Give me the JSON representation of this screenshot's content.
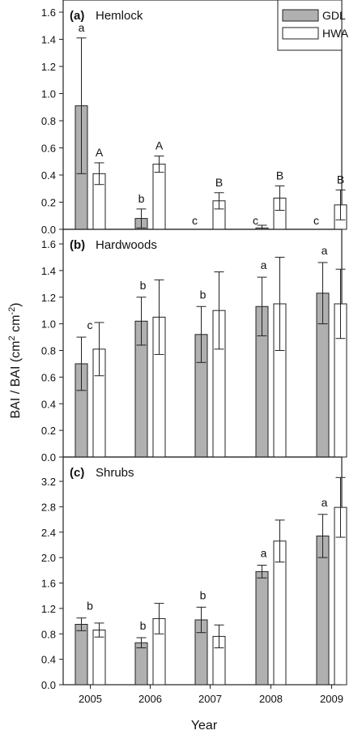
{
  "chart_data": {
    "type": "bar",
    "xlabel": "Year",
    "ylabel": "BAI / BAI (cm² cm⁻²)",
    "ylabel_parts": {
      "main": "BAI / BAI (cm",
      "sup1": "2",
      "mid": " cm",
      "sup2": "-2",
      "end": ")"
    },
    "categories": [
      "2005",
      "2006",
      "2007",
      "2008",
      "2009"
    ],
    "legend": {
      "position": "top-right",
      "entries": [
        {
          "name": "GDL",
          "color": "#b0b0b0"
        },
        {
          "name": "HWA",
          "color": "#ffffff"
        }
      ]
    },
    "panels": [
      {
        "id": "hemlock",
        "label": "(a)",
        "title": "Hemlock",
        "ylim": [
          0,
          1.6
        ],
        "yticks": [
          "0.0",
          "0.2",
          "0.4",
          "0.6",
          "0.8",
          "1.0",
          "1.2",
          "1.4",
          "1.6"
        ],
        "series": [
          {
            "name": "GDL",
            "values": [
              0.91,
              0.08,
              0.0,
              0.01,
              0.0
            ],
            "errors": [
              0.5,
              0.07,
              0.0,
              0.02,
              0.0
            ]
          },
          {
            "name": "HWA",
            "values": [
              0.41,
              0.48,
              0.21,
              0.23,
              0.18
            ],
            "errors": [
              0.08,
              0.06,
              0.06,
              0.09,
              0.11
            ]
          }
        ],
        "annotations": [
          {
            "category": 0,
            "series": 0,
            "text": "a"
          },
          {
            "category": 0,
            "series": 1,
            "text": "A"
          },
          {
            "category": 1,
            "series": 0,
            "text": "b"
          },
          {
            "category": 1,
            "series": 1,
            "text": "A"
          },
          {
            "category": 2,
            "series": 0,
            "text": "c"
          },
          {
            "category": 2,
            "series": 1,
            "text": "B"
          },
          {
            "category": 3,
            "series": 0,
            "text": "c"
          },
          {
            "category": 3,
            "series": 1,
            "text": "B"
          },
          {
            "category": 4,
            "series": 0,
            "text": "c"
          },
          {
            "category": 4,
            "series": 1,
            "text": "B"
          }
        ]
      },
      {
        "id": "hardwoods",
        "label": "(b)",
        "title": "Hardwoods",
        "ylim": [
          0,
          1.6
        ],
        "yticks": [
          "0.0",
          "0.2",
          "0.4",
          "0.6",
          "0.8",
          "1.0",
          "1.2",
          "1.4",
          "1.6"
        ],
        "series": [
          {
            "name": "GDL",
            "values": [
              0.7,
              1.02,
              0.92,
              1.13,
              1.23
            ],
            "errors": [
              0.2,
              0.18,
              0.21,
              0.22,
              0.23
            ]
          },
          {
            "name": "HWA",
            "values": [
              0.81,
              1.05,
              1.1,
              1.15,
              1.15
            ],
            "errors": [
              0.2,
              0.28,
              0.29,
              0.35,
              0.26
            ]
          }
        ],
        "annotations": [
          {
            "category": 0,
            "group": true,
            "text": "c"
          },
          {
            "category": 1,
            "group": true,
            "text": "b"
          },
          {
            "category": 2,
            "group": true,
            "text": "b"
          },
          {
            "category": 3,
            "group": true,
            "text": "a"
          },
          {
            "category": 4,
            "group": true,
            "text": "a"
          }
        ]
      },
      {
        "id": "shrubs",
        "label": "(c)",
        "title": "Shrubs",
        "ylim": [
          0,
          3.4
        ],
        "yticks": [
          "0.0",
          "0.4",
          "0.8",
          "1.2",
          "1.6",
          "2.0",
          "2.4",
          "2.8",
          "3.2"
        ],
        "series": [
          {
            "name": "GDL",
            "values": [
              0.95,
              0.66,
              1.02,
              1.78,
              2.34
            ],
            "errors": [
              0.1,
              0.08,
              0.2,
              0.1,
              0.34
            ]
          },
          {
            "name": "HWA",
            "values": [
              0.86,
              1.04,
              0.76,
              2.26,
              2.79
            ],
            "errors": [
              0.11,
              0.24,
              0.18,
              0.33,
              0.47
            ]
          }
        ],
        "annotations": [
          {
            "category": 0,
            "group": true,
            "text": "b"
          },
          {
            "category": 1,
            "group": true,
            "text": "b"
          },
          {
            "category": 2,
            "group": true,
            "text": "b"
          },
          {
            "category": 3,
            "group": true,
            "text": "a"
          },
          {
            "category": 4,
            "group": true,
            "text": "a"
          }
        ]
      }
    ]
  }
}
